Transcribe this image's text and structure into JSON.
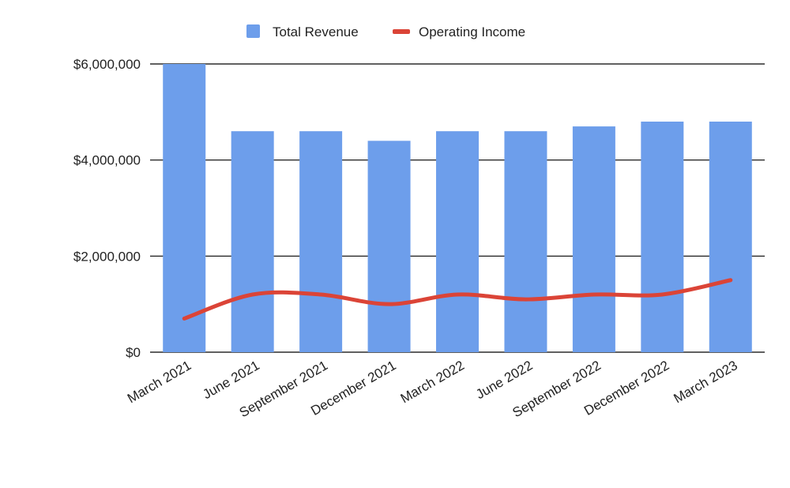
{
  "chart_data": {
    "type": "bar",
    "categories": [
      "March 2021",
      "June 2021",
      "September 2021",
      "December 2021",
      "March 2022",
      "June 2022",
      "September 2022",
      "December 2022",
      "March 2023"
    ],
    "series": [
      {
        "name": "Total Revenue",
        "type": "bar",
        "color": "#6d9eeb",
        "values": [
          6000000,
          4600000,
          4600000,
          4400000,
          4600000,
          4600000,
          4700000,
          4800000,
          4800000
        ]
      },
      {
        "name": "Operating Income",
        "type": "line",
        "color": "#db4437",
        "smooth": true,
        "values": [
          700000,
          1200000,
          1200000,
          1000000,
          1200000,
          1100000,
          1200000,
          1200000,
          1500000
        ]
      }
    ],
    "y_ticks": [
      {
        "value": 0,
        "label": "$0"
      },
      {
        "value": 2000000,
        "label": "$2,000,000"
      },
      {
        "value": 4000000,
        "label": "$4,000,000"
      },
      {
        "value": 6000000,
        "label": "$6,000,000"
      }
    ],
    "ylim": [
      0,
      6000000
    ],
    "grid": true,
    "legend_position": "top-center",
    "title": "",
    "xlabel": "",
    "ylabel": ""
  }
}
